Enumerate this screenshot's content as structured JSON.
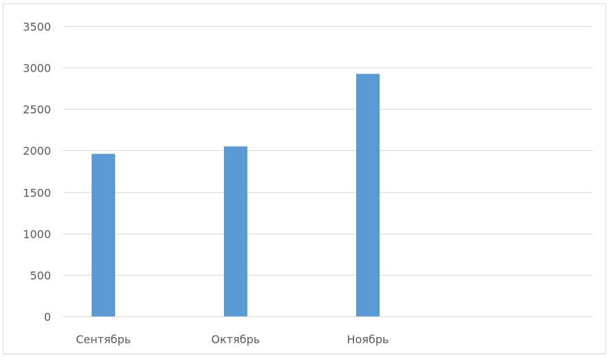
{
  "chart_data": {
    "type": "bar",
    "title": "",
    "xlabel": "",
    "ylabel": "",
    "categories": [
      "Сентябрь",
      "Октябрь",
      "Ноябрь",
      ""
    ],
    "series": [
      {
        "values": [
          1960,
          2050,
          2925,
          null
        ]
      }
    ],
    "ylim": [
      0,
      3500
    ],
    "yticks": [
      0,
      500,
      1000,
      1500,
      2000,
      2500,
      3000,
      3500
    ],
    "ytick_labels": [
      "0",
      "500",
      "1000",
      "1500",
      "2000",
      "2500",
      "3000",
      "3500"
    ],
    "grid": true,
    "legend": "none",
    "bar_color": "#5b9bd5"
  }
}
